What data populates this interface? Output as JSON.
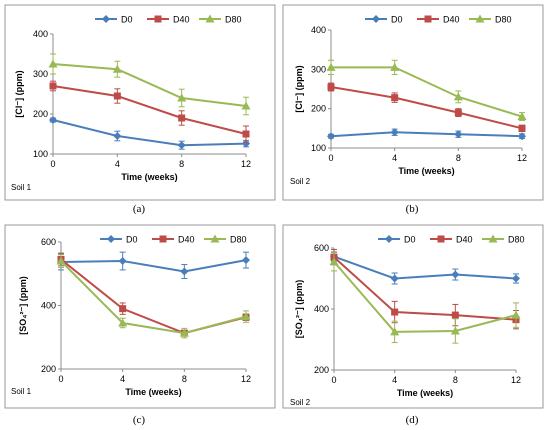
{
  "chart_data": [
    {
      "type": "line",
      "caption": "(a)",
      "soil_label": "Soil 1",
      "xlabel": "Time (weeks)",
      "ylabel": "[Cl⁻] (ppm)",
      "x": [
        0,
        4,
        8,
        12
      ],
      "xticks": [
        "0",
        "4",
        "8",
        "12"
      ],
      "ylim": [
        100,
        400
      ],
      "yticks": [
        "100",
        "200",
        "300",
        "400"
      ],
      "grid": false,
      "legend": "top",
      "series": [
        {
          "name": "D0",
          "color": "#4a7ebb",
          "marker": "diamond",
          "values": [
            185,
            145,
            122,
            126
          ],
          "errors": [
            5,
            12,
            10,
            8
          ]
        },
        {
          "name": "D40",
          "color": "#be4b48",
          "marker": "square",
          "values": [
            270,
            245,
            190,
            150
          ],
          "errors": [
            12,
            18,
            18,
            20
          ]
        },
        {
          "name": "D80",
          "color": "#98b954",
          "marker": "triangle",
          "values": [
            325,
            312,
            240,
            220
          ],
          "errors": [
            25,
            20,
            22,
            22
          ]
        }
      ]
    },
    {
      "type": "line",
      "caption": "(b)",
      "soil_label": "Soil 2",
      "xlabel": "Time (weeks)",
      "ylabel": "[Cl⁻] (ppm)",
      "x": [
        0,
        4,
        8,
        12
      ],
      "xticks": [
        "0",
        "4",
        "8",
        "12"
      ],
      "ylim": [
        100,
        400
      ],
      "yticks": [
        "100",
        "200",
        "300",
        "400"
      ],
      "grid": false,
      "legend": "top",
      "series": [
        {
          "name": "D0",
          "color": "#4a7ebb",
          "marker": "diamond",
          "values": [
            130,
            140,
            135,
            130
          ],
          "errors": [
            5,
            8,
            8,
            6
          ]
        },
        {
          "name": "D40",
          "color": "#be4b48",
          "marker": "square",
          "values": [
            255,
            228,
            190,
            150
          ],
          "errors": [
            10,
            12,
            10,
            8
          ]
        },
        {
          "name": "D80",
          "color": "#98b954",
          "marker": "triangle",
          "values": [
            305,
            305,
            230,
            180
          ],
          "errors": [
            18,
            18,
            15,
            10
          ]
        }
      ]
    },
    {
      "type": "line",
      "caption": "(c)",
      "soil_label": "Soil 1",
      "xlabel": "Time (weeks)",
      "ylabel": "[SO₄²⁻] (ppm)",
      "x": [
        0,
        4,
        8,
        12
      ],
      "xticks": [
        "0",
        "4",
        "8",
        "12"
      ],
      "ylim": [
        200,
        600
      ],
      "yticks": [
        "200",
        "400",
        "600"
      ],
      "grid": false,
      "legend": "top",
      "series": [
        {
          "name": "D0",
          "color": "#4a7ebb",
          "marker": "diamond",
          "values": [
            537,
            540,
            507,
            543
          ],
          "errors": [
            25,
            28,
            22,
            25
          ]
        },
        {
          "name": "D40",
          "color": "#be4b48",
          "marker": "square",
          "values": [
            545,
            390,
            313,
            363
          ],
          "errors": [
            20,
            18,
            8,
            10
          ]
        },
        {
          "name": "D80",
          "color": "#98b954",
          "marker": "triangle",
          "values": [
            540,
            345,
            313,
            365
          ],
          "errors": [
            20,
            15,
            15,
            18
          ]
        }
      ]
    },
    {
      "type": "line",
      "caption": "(d)",
      "soil_label": "Soil 2",
      "xlabel": "Time (weeks)",
      "ylabel": "[SO₄²⁻] (ppm)",
      "x": [
        0,
        4,
        8,
        12
      ],
      "xticks": [
        "0",
        "4",
        "8",
        "12"
      ],
      "ylim": [
        200,
        600
      ],
      "yticks": [
        "200",
        "400",
        "600"
      ],
      "grid": false,
      "legend": "top",
      "series": [
        {
          "name": "D0",
          "color": "#4a7ebb",
          "marker": "diamond",
          "values": [
            572,
            500,
            513,
            500
          ],
          "errors": [
            15,
            18,
            18,
            15
          ]
        },
        {
          "name": "D40",
          "color": "#be4b48",
          "marker": "square",
          "values": [
            570,
            390,
            380,
            365
          ],
          "errors": [
            25,
            35,
            35,
            30
          ]
        },
        {
          "name": "D80",
          "color": "#98b954",
          "marker": "triangle",
          "values": [
            555,
            325,
            328,
            380
          ],
          "errors": [
            30,
            35,
            40,
            40
          ]
        }
      ]
    }
  ]
}
